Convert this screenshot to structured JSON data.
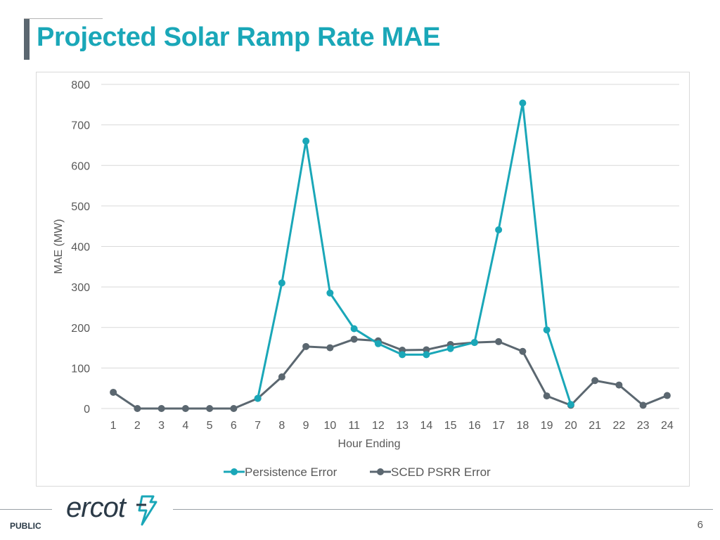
{
  "slide": {
    "title": "Projected Solar Ramp Rate MAE",
    "footer_label": "PUBLIC",
    "page_number": "6",
    "logo_text": "ercot"
  },
  "colors": {
    "title": "#1aa7b8",
    "persistence": "#1aa7b8",
    "sced": "#5b6770",
    "grid": "#d9d9d9",
    "axis_text": "#595959"
  },
  "chart_data": {
    "type": "line",
    "title": "",
    "xlabel": "Hour Ending",
    "ylabel": "MAE (MW)",
    "categories": [
      "1",
      "2",
      "3",
      "4",
      "5",
      "6",
      "7",
      "8",
      "9",
      "10",
      "11",
      "12",
      "13",
      "14",
      "15",
      "16",
      "17",
      "18",
      "19",
      "20",
      "21",
      "22",
      "23",
      "24"
    ],
    "ylim": [
      0,
      800
    ],
    "yticks": [
      0,
      100,
      200,
      300,
      400,
      500,
      600,
      700,
      800
    ],
    "grid": true,
    "legend_position": "bottom",
    "series": [
      {
        "name": "Persistence Error",
        "color": "#1aa7b8",
        "values": [
          null,
          null,
          null,
          null,
          null,
          null,
          25,
          310,
          660,
          285,
          197,
          160,
          133,
          133,
          148,
          163,
          441,
          754,
          194,
          10,
          null,
          null,
          null,
          null
        ]
      },
      {
        "name": "SCED PSRR Error",
        "color": "#5b6770",
        "values": [
          40,
          0,
          0,
          0,
          0,
          0,
          25,
          78,
          153,
          150,
          171,
          167,
          144,
          145,
          158,
          163,
          165,
          141,
          31,
          8,
          69,
          58,
          8,
          32
        ]
      }
    ]
  }
}
